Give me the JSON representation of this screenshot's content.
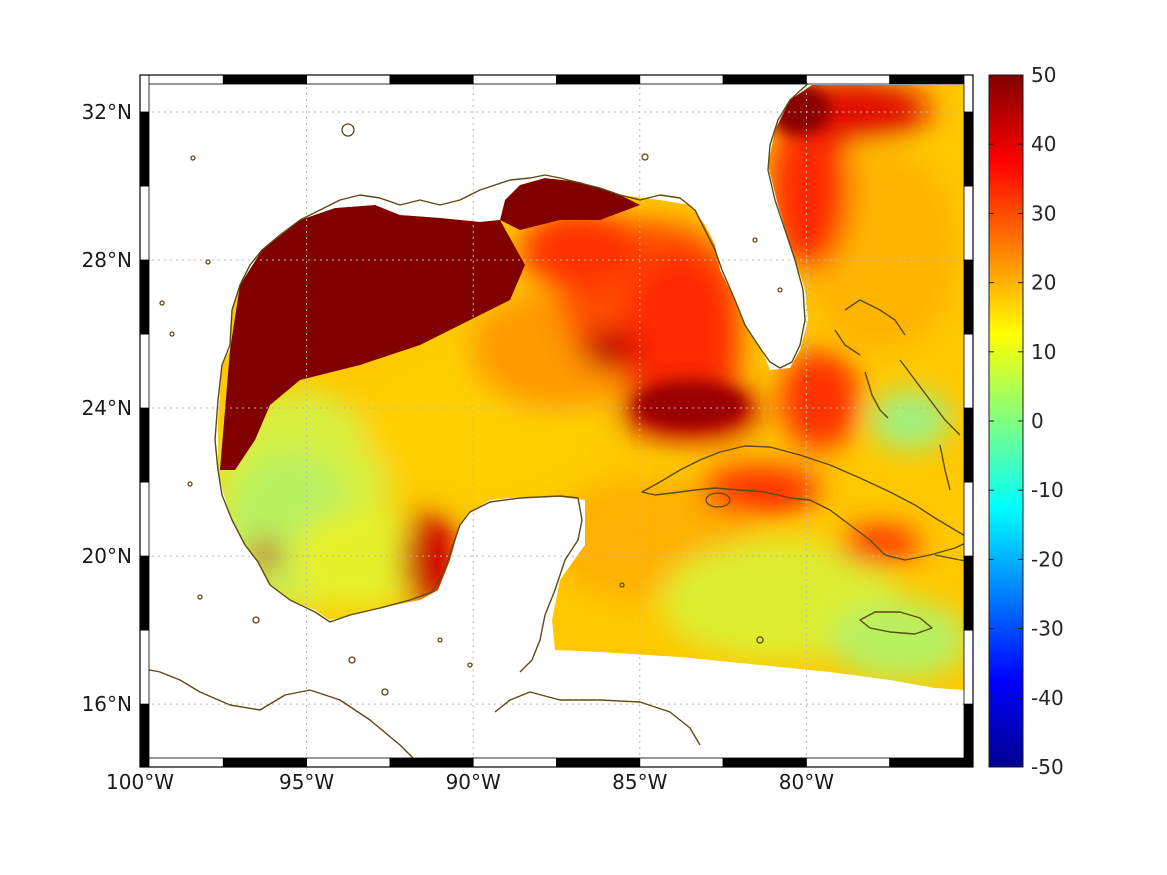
{
  "map": {
    "type": "field-map",
    "projection": "equirectangular",
    "lon_range": [
      -100,
      -75
    ],
    "lat_range": [
      14.3,
      33
    ],
    "lon_ticks": [
      {
        "value": -100,
        "label": "100°W"
      },
      {
        "value": -95,
        "label": "95°W"
      },
      {
        "value": -90,
        "label": "90°W"
      },
      {
        "value": -85,
        "label": "85°W"
      },
      {
        "value": -80,
        "label": "80°W"
      }
    ],
    "lat_ticks": [
      {
        "value": 32,
        "label": "32°N"
      },
      {
        "value": 28,
        "label": "28°N"
      },
      {
        "value": 24,
        "label": "24°N"
      },
      {
        "value": 20,
        "label": "20°N"
      },
      {
        "value": 16,
        "label": "16°N"
      }
    ],
    "grid": true,
    "frame": "checkered black-white border",
    "coastline_color": "#5c4a12",
    "field_regions": [
      {
        "region": "northwestern Gulf shelf (Texas–Louisiana)",
        "approx_value": 50
      },
      {
        "region": "northeastern Gulf (Mississippi–Alabama shelf)",
        "approx_value": 45
      },
      {
        "region": "eastern Gulf / West Florida",
        "approx_value": 35
      },
      {
        "region": "Florida Straits",
        "approx_value": 45
      },
      {
        "region": "Bay of Campeche, western Mexico coast",
        "approx_value": 10
      },
      {
        "region": "central Gulf",
        "approx_value": 22
      },
      {
        "region": "northwestern Caribbean",
        "approx_value": 15
      },
      {
        "region": "Atlantic east of Florida",
        "approx_value": 25
      },
      {
        "region": "southeast Atlantic coast (Georgia–Carolinas)",
        "approx_value": 45
      }
    ]
  },
  "colorbar": {
    "colormap": "jet",
    "min": -50,
    "max": 50,
    "ticks": [
      {
        "value": 50,
        "label": "50"
      },
      {
        "value": 40,
        "label": "40"
      },
      {
        "value": 30,
        "label": "30"
      },
      {
        "value": 20,
        "label": "20"
      },
      {
        "value": 10,
        "label": "10"
      },
      {
        "value": 0,
        "label": "0"
      },
      {
        "value": -10,
        "label": "-10"
      },
      {
        "value": -20,
        "label": "-20"
      },
      {
        "value": -30,
        "label": "-30"
      },
      {
        "value": -40,
        "label": "-40"
      },
      {
        "value": -50,
        "label": "-50"
      }
    ]
  }
}
